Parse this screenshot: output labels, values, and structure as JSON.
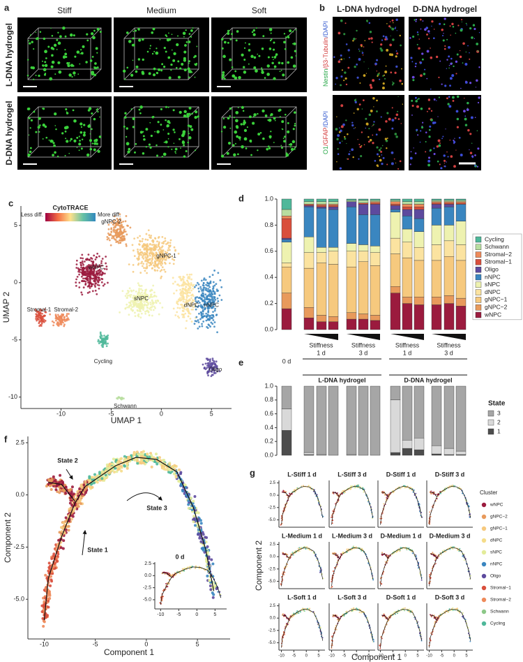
{
  "panel_labels": [
    "a",
    "b",
    "c",
    "d",
    "e",
    "f",
    "g"
  ],
  "panel_a": {
    "columns": [
      "Stiff",
      "Medium",
      "Soft"
    ],
    "rows": [
      "L-DNA hydrogel",
      "D-DNA hydrogel"
    ]
  },
  "panel_b": {
    "columns": [
      "L-DNA hydrogel",
      "D-DNA hydrogel"
    ],
    "rows": [
      [
        "Nestin",
        "/β3-Tubulin",
        "/DAPI"
      ],
      [
        "O1",
        "/GFAP",
        "/DAPI"
      ]
    ],
    "row_colors": [
      "#2aa84a",
      "#d43c3c",
      "#3a5fd0"
    ]
  },
  "panel_c": {
    "type": "scatter",
    "xlabel": "UMAP 1",
    "ylabel": "UMAP 2",
    "xlim": [
      -14,
      7
    ],
    "ylim": [
      -11,
      6.7
    ],
    "xticks": [
      -10,
      -5,
      0,
      5
    ],
    "yticks": [
      5,
      0,
      -5,
      -10
    ],
    "colorbar": {
      "title": "CytoTRACE",
      "low": "Less diff.",
      "high": "More diff."
    },
    "clusters": [
      "gNPC-2",
      "gNPC-1",
      "wNPC",
      "sNPC",
      "dNPC",
      "nNPC",
      "Stromal-1",
      "Stromal-2",
      "Cycling",
      "Oligo",
      "Schwann"
    ]
  },
  "chart_data": [
    {
      "type": "stacked_bar",
      "categories": [
        null,
        null,
        null,
        null,
        null,
        null,
        null,
        null,
        null,
        null,
        null,
        null,
        null
      ],
      "ylim": [
        0,
        1
      ],
      "yticks": [
        {
          "value": 0,
          "label": "0.0"
        },
        0.2,
        0.4,
        0.6,
        0.8,
        {
          "value": 1,
          "label": "1.0"
        }
      ],
      "series": [
        {
          "name": "wNPC",
          "color": "#9b1b3e",
          "values": [
            0.16,
            0.09,
            0.06,
            0.06,
            0.08,
            0.08,
            0.07,
            0.28,
            0.2,
            0.19,
            0.19,
            0.2,
            0.18
          ]
        },
        {
          "name": "gNPC−2",
          "color": "#e89a5c",
          "values": [
            0.12,
            0.08,
            0.05,
            0.04,
            0.05,
            0.04,
            0.04,
            0.05,
            0.05,
            0.06,
            0.06,
            0.06,
            0.06
          ]
        },
        {
          "name": "gNPC−1",
          "color": "#f6c97e",
          "values": [
            0.2,
            0.3,
            0.4,
            0.4,
            0.35,
            0.4,
            0.38,
            0.25,
            0.3,
            0.28,
            0.28,
            0.3,
            0.29
          ]
        },
        {
          "name": "dNPC",
          "color": "#fbe3a0",
          "values": [
            0.03,
            0.12,
            0.08,
            0.1,
            0.12,
            0.08,
            0.1,
            0.12,
            0.12,
            0.1,
            0.12,
            0.12,
            0.12
          ]
        },
        {
          "name": "sNPC",
          "color": "#eef2b0",
          "values": [
            0.16,
            0.12,
            0.04,
            0.03,
            0.06,
            0.05,
            0.05,
            0.2,
            0.1,
            0.12,
            0.15,
            0.12,
            0.18
          ]
        },
        {
          "name": "nNPC",
          "color": "#3a86c0",
          "values": [
            0.02,
            0.23,
            0.3,
            0.29,
            0.28,
            0.23,
            0.24,
            0.02,
            0.1,
            0.1,
            0.13,
            0.14,
            0.13
          ]
        },
        {
          "name": "Oligo",
          "color": "#5d4a9e",
          "values": [
            0.01,
            0.01,
            0.01,
            0.02,
            0.04,
            0.08,
            0.08,
            0.03,
            0.05,
            0.07,
            0.03,
            0.02,
            0
          ]
        },
        {
          "name": "Stromal−1",
          "color": "#d94f3c",
          "values": [
            0.15,
            0.01,
            0.01,
            0.01,
            0,
            0.01,
            0.01,
            0.01,
            0.02,
            0.02,
            0.01,
            0.01,
            0.01
          ]
        },
        {
          "name": "Stromal−2",
          "color": "#ee8a5a",
          "values": [
            0.02,
            0,
            0.01,
            0.01,
            0,
            0,
            0.01,
            0.02,
            0.02,
            0.02,
            0.01,
            0.01,
            0.01
          ]
        },
        {
          "name": "Schwann",
          "color": "#b8dea0",
          "values": [
            0.05,
            0.02,
            0.02,
            0.02,
            0.01,
            0.02,
            0.01,
            0.01,
            0.02,
            0.02,
            0.01,
            0.01,
            0.01
          ]
        },
        {
          "name": "Cycling",
          "color": "#4fb89a",
          "values": [
            0.08,
            0.02,
            0.02,
            0.02,
            0.01,
            0.01,
            0.01,
            0.01,
            0.02,
            0.02,
            0.01,
            0.01,
            0.01
          ]
        }
      ]
    },
    {
      "type": "stacked_bar",
      "categories": [
        null,
        null,
        null,
        null,
        null,
        null,
        null,
        null,
        null,
        null,
        null,
        null,
        null
      ],
      "ylim": [
        0,
        1
      ],
      "yticks": [
        {
          "value": 0,
          "label": "0.0"
        },
        0.2,
        0.4,
        0.6,
        0.8,
        {
          "value": 1,
          "label": "1.0"
        }
      ],
      "legend_title": "State",
      "series": [
        {
          "name": "1",
          "color": "#4d4d4d",
          "values": [
            0.36,
            0.01,
            0,
            0,
            0,
            0,
            0,
            0.04,
            0.1,
            0.08,
            0.02,
            0.01,
            0.01
          ]
        },
        {
          "name": "2",
          "color": "#d9d9d9",
          "values": [
            0.31,
            0.03,
            0.01,
            0,
            0.01,
            0,
            0,
            0.76,
            0.12,
            0.17,
            0.12,
            0.09,
            0.05
          ]
        },
        {
          "name": "3",
          "color": "#a6a6a6",
          "values": [
            0.33,
            0.96,
            0.99,
            1,
            0.99,
            1,
            1,
            0.2,
            0.78,
            0.75,
            0.86,
            0.9,
            0.94
          ]
        }
      ]
    }
  ],
  "conditions": {
    "zero": "0 d",
    "stiffness": "Stiffness",
    "days": [
      "1 d",
      "3 d",
      "1 d",
      "3 d"
    ],
    "hydrogels": [
      "L-DNA hydrogel",
      "D-DNA hydrogel"
    ]
  },
  "panel_f": {
    "xlabel": "Component 1",
    "ylabel": "Component 2",
    "xlim": [
      -11.6,
      8.2
    ],
    "ylim": [
      -6.9,
      2.8
    ],
    "xticks": [
      -10,
      -5,
      0,
      5
    ],
    "yticks": [
      2.5,
      {
        "value": 0,
        "label": "0.0"
      },
      -2.5,
      {
        "value": -5,
        "label": "-5.0"
      }
    ],
    "states": [
      "State 2",
      "State 3",
      "State 1"
    ],
    "inset_title": "0 d"
  },
  "panel_g": {
    "titles": [
      "L-Stiff 1 d",
      "L-Stiff 3 d",
      "D-Stiff 1 d",
      "D-Stiff 3 d",
      "L-Medium 1 d",
      "L-Medium 3 d",
      "D-Medium 1 d",
      "D-Medium 3 d",
      "L-Soft 1 d",
      "L-Soft 3 d",
      "D-Soft 1 d",
      "D-Soft 3 d"
    ],
    "xlabel": "Component 1",
    "ylabel": "Component 2",
    "xlim": [
      -11,
      7.5
    ],
    "ylim": [
      -6.5,
      3
    ],
    "xticks": [
      -10,
      -5,
      0,
      5
    ],
    "yticks": [
      2.5,
      {
        "value": 0,
        "label": "0.0"
      },
      -2.5,
      {
        "value": -5,
        "label": "-5.0"
      }
    ],
    "legend_title": "Cluster",
    "clusters": [
      "wNPC",
      "gNPC−2",
      "gNPC−1",
      "dNPC",
      "sNPC",
      "nNPC",
      "Oligo",
      "Stromal−1",
      "Stromal−2",
      "Schwann",
      "Cycling"
    ],
    "colors": [
      "#9b1b3e",
      "#e89a5c",
      "#f6c97e",
      "#f5dc8a",
      "#e3ec9a",
      "#3a86c0",
      "#5d4a9e",
      "#d94f3c",
      "#ee8a5a",
      "#8cc888",
      "#4fb89a"
    ]
  }
}
